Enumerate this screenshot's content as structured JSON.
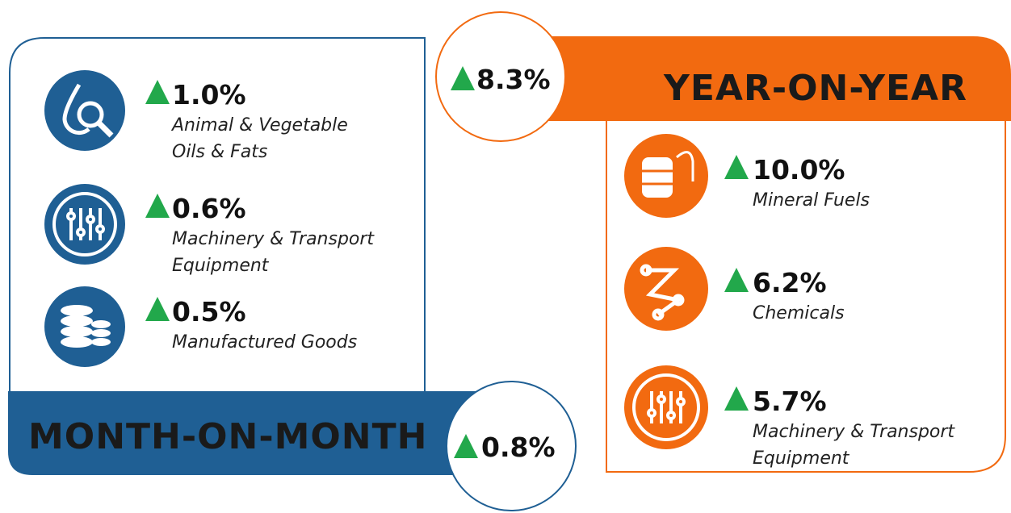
{
  "month_on_month": {
    "title": "MONTH-ON-MONTH",
    "value": "0.8%",
    "items": [
      {
        "value": "1.0%",
        "label": [
          "Animal & Vegetable",
          "Oils & Fats"
        ]
      },
      {
        "value": "0.6%",
        "label": [
          "Machinery & Transport",
          "Equipment"
        ]
      },
      {
        "value": "0.5%",
        "label": [
          "Manufactured Goods"
        ]
      }
    ]
  },
  "year_on_year": {
    "title": "YEAR-ON-YEAR",
    "value": "8.3%",
    "items": [
      {
        "value": "10.0%",
        "label": [
          "Mineral Fuels"
        ]
      },
      {
        "value": "6.2%",
        "label": [
          "Chemicals"
        ]
      },
      {
        "value": "5.7%",
        "label": [
          "Machinery & Transport",
          "Equipment"
        ]
      }
    ]
  }
}
